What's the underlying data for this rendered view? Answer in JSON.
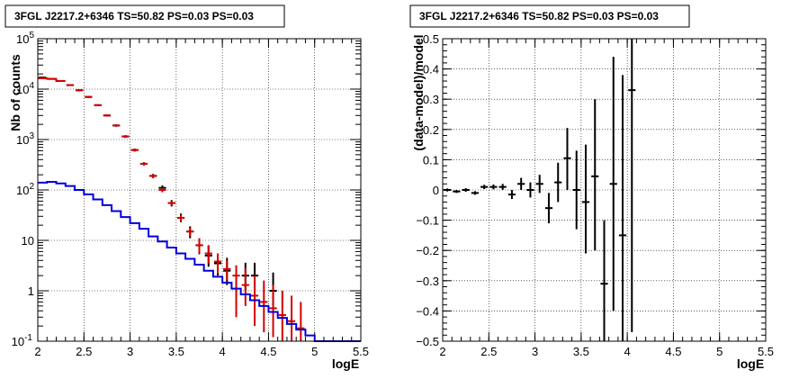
{
  "chart_data": [
    {
      "type": "scatter",
      "title": "3FGL J2217.2+6346 TS=50.82 PS=0.03 PS=0.03",
      "xlabel": "logE",
      "ylabel": "Nb of counts",
      "xlim": [
        2,
        5.5
      ],
      "ylim": [
        0.1,
        100000
      ],
      "yscale": "log",
      "grid": true,
      "x_ticks": [
        "2",
        "2.5",
        "3",
        "3.5",
        "4",
        "4.5",
        "5",
        "5.5"
      ],
      "y_ticks": [
        {
          "value": 0.1,
          "label": "10",
          "exp": "-1"
        },
        {
          "value": 1,
          "label": "1",
          "exp": ""
        },
        {
          "value": 10,
          "label": "10",
          "exp": ""
        },
        {
          "value": 100,
          "label": "10",
          "exp": "2"
        },
        {
          "value": 1000,
          "label": "10",
          "exp": "3"
        },
        {
          "value": 10000,
          "label": "10",
          "exp": "4"
        },
        {
          "value": 100000,
          "label": "10",
          "exp": "5"
        }
      ],
      "series": [
        {
          "kind": "points",
          "color": "#000000",
          "points": [
            {
              "x": 2.05,
              "y": 17000,
              "lo": 16500,
              "hi": 17500
            },
            {
              "x": 2.15,
              "y": 16000,
              "lo": 15500,
              "hi": 16500
            },
            {
              "x": 2.25,
              "y": 14500,
              "lo": 14000,
              "hi": 15000
            },
            {
              "x": 2.35,
              "y": 12000,
              "lo": 11600,
              "hi": 12400
            },
            {
              "x": 2.45,
              "y": 9500,
              "lo": 9100,
              "hi": 9900
            },
            {
              "x": 2.55,
              "y": 7000,
              "lo": 6700,
              "hi": 7300
            },
            {
              "x": 2.65,
              "y": 4800,
              "lo": 4600,
              "hi": 5000
            },
            {
              "x": 2.75,
              "y": 3000,
              "lo": 2850,
              "hi": 3150
            },
            {
              "x": 2.85,
              "y": 1900,
              "lo": 1800,
              "hi": 2000
            },
            {
              "x": 2.95,
              "y": 1150,
              "lo": 1080,
              "hi": 1220
            },
            {
              "x": 3.05,
              "y": 620,
              "lo": 580,
              "hi": 660
            },
            {
              "x": 3.15,
              "y": 330,
              "lo": 305,
              "hi": 355
            },
            {
              "x": 3.25,
              "y": 190,
              "lo": 172,
              "hi": 208
            },
            {
              "x": 3.35,
              "y": 110,
              "lo": 97,
              "hi": 123
            },
            {
              "x": 3.45,
              "y": 55,
              "lo": 47,
              "hi": 63
            },
            {
              "x": 3.55,
              "y": 28,
              "lo": 23,
              "hi": 34
            },
            {
              "x": 3.65,
              "y": 15,
              "lo": 11,
              "hi": 19
            },
            {
              "x": 3.75,
              "y": 8,
              "lo": 5.3,
              "hi": 11
            },
            {
              "x": 3.85,
              "y": 5,
              "lo": 3,
              "hi": 8
            },
            {
              "x": 3.95,
              "y": 3.5,
              "lo": 2,
              "hi": 5.5
            },
            {
              "x": 4.05,
              "y": 2.5,
              "lo": 1.3,
              "hi": 4.5
            },
            {
              "x": 4.25,
              "y": 2,
              "lo": 1,
              "hi": 3.6
            },
            {
              "x": 4.35,
              "y": 2,
              "lo": 1,
              "hi": 3.6
            },
            {
              "x": 4.55,
              "y": 1,
              "lo": 0.5,
              "hi": 2.3
            }
          ]
        },
        {
          "kind": "points",
          "color": "#d40000",
          "points": [
            {
              "x": 2.05,
              "y": 16500,
              "lo": 16000,
              "hi": 17000
            },
            {
              "x": 2.15,
              "y": 16000,
              "lo": 15500,
              "hi": 16500
            },
            {
              "x": 2.25,
              "y": 14500,
              "lo": 14000,
              "hi": 15000
            },
            {
              "x": 2.35,
              "y": 12000,
              "lo": 11600,
              "hi": 12400
            },
            {
              "x": 2.45,
              "y": 9500,
              "lo": 9100,
              "hi": 9900
            },
            {
              "x": 2.55,
              "y": 7000,
              "lo": 6700,
              "hi": 7300
            },
            {
              "x": 2.65,
              "y": 4800,
              "lo": 4600,
              "hi": 5000
            },
            {
              "x": 2.75,
              "y": 3000,
              "lo": 2850,
              "hi": 3150
            },
            {
              "x": 2.85,
              "y": 1900,
              "lo": 1800,
              "hi": 2000
            },
            {
              "x": 2.95,
              "y": 1150,
              "lo": 1080,
              "hi": 1220
            },
            {
              "x": 3.05,
              "y": 620,
              "lo": 580,
              "hi": 660
            },
            {
              "x": 3.15,
              "y": 330,
              "lo": 305,
              "hi": 355
            },
            {
              "x": 3.25,
              "y": 190,
              "lo": 172,
              "hi": 208
            },
            {
              "x": 3.35,
              "y": 100,
              "lo": 90,
              "hi": 110
            },
            {
              "x": 3.45,
              "y": 55,
              "lo": 49,
              "hi": 61
            },
            {
              "x": 3.55,
              "y": 28,
              "lo": 24,
              "hi": 32
            },
            {
              "x": 3.65,
              "y": 15,
              "lo": 12,
              "hi": 18
            },
            {
              "x": 3.75,
              "y": 8,
              "lo": 5.5,
              "hi": 11
            },
            {
              "x": 3.85,
              "y": 5.5,
              "lo": 3.5,
              "hi": 8
            },
            {
              "x": 3.95,
              "y": 3.8,
              "lo": 2.2,
              "hi": 5.5
            },
            {
              "x": 4.05,
              "y": 2.7,
              "lo": 1.6,
              "hi": 4
            },
            {
              "x": 4.15,
              "y": 2.0,
              "lo": 0.3,
              "hi": 3.2
            },
            {
              "x": 4.25,
              "y": 1.3,
              "lo": 0.5,
              "hi": 2.8
            },
            {
              "x": 4.35,
              "y": 0.8,
              "lo": 0.2,
              "hi": 2.0
            },
            {
              "x": 4.45,
              "y": 0.6,
              "lo": 0.15,
              "hi": 1.6
            },
            {
              "x": 4.55,
              "y": 0.45,
              "lo": 0.12,
              "hi": 1.3
            },
            {
              "x": 4.65,
              "y": 0.33,
              "lo": 0.1,
              "hi": 1.0
            },
            {
              "x": 4.75,
              "y": 0.25,
              "lo": 0.1,
              "hi": 0.8
            },
            {
              "x": 4.85,
              "y": 0.18,
              "lo": 0.1,
              "hi": 0.6
            }
          ]
        },
        {
          "kind": "step",
          "color": "#0000dd",
          "bins": [
            {
              "x0": 2.0,
              "x1": 2.1,
              "y": 140
            },
            {
              "x0": 2.1,
              "x1": 2.2,
              "y": 145
            },
            {
              "x0": 2.2,
              "x1": 2.3,
              "y": 135
            },
            {
              "x0": 2.3,
              "x1": 2.4,
              "y": 120
            },
            {
              "x0": 2.4,
              "x1": 2.5,
              "y": 100
            },
            {
              "x0": 2.5,
              "x1": 2.6,
              "y": 82
            },
            {
              "x0": 2.6,
              "x1": 2.7,
              "y": 65
            },
            {
              "x0": 2.7,
              "x1": 2.8,
              "y": 50
            },
            {
              "x0": 2.8,
              "x1": 2.9,
              "y": 38
            },
            {
              "x0": 2.9,
              "x1": 3.0,
              "y": 29
            },
            {
              "x0": 3.0,
              "x1": 3.1,
              "y": 22
            },
            {
              "x0": 3.1,
              "x1": 3.2,
              "y": 17
            },
            {
              "x0": 3.2,
              "x1": 3.3,
              "y": 12
            },
            {
              "x0": 3.3,
              "x1": 3.4,
              "y": 9.5
            },
            {
              "x0": 3.4,
              "x1": 3.5,
              "y": 7.2
            },
            {
              "x0": 3.5,
              "x1": 3.6,
              "y": 5.5
            },
            {
              "x0": 3.6,
              "x1": 3.7,
              "y": 4.3
            },
            {
              "x0": 3.7,
              "x1": 3.8,
              "y": 3.3
            },
            {
              "x0": 3.8,
              "x1": 3.9,
              "y": 2.5
            },
            {
              "x0": 3.9,
              "x1": 4.0,
              "y": 1.9
            },
            {
              "x0": 4.0,
              "x1": 4.1,
              "y": 1.45
            },
            {
              "x0": 4.1,
              "x1": 4.2,
              "y": 1.1
            },
            {
              "x0": 4.2,
              "x1": 4.3,
              "y": 0.85
            },
            {
              "x0": 4.3,
              "x1": 4.4,
              "y": 0.65
            },
            {
              "x0": 4.4,
              "x1": 4.5,
              "y": 0.5
            },
            {
              "x0": 4.5,
              "x1": 4.6,
              "y": 0.38
            },
            {
              "x0": 4.6,
              "x1": 4.7,
              "y": 0.29
            },
            {
              "x0": 4.7,
              "x1": 4.8,
              "y": 0.22
            },
            {
              "x0": 4.8,
              "x1": 4.9,
              "y": 0.17
            },
            {
              "x0": 4.9,
              "x1": 5.0,
              "y": 0.13
            },
            {
              "x0": 5.0,
              "x1": 5.5,
              "y": 0.1
            }
          ]
        },
        {
          "kind": "step",
          "color": "#d40000",
          "bins": [
            {
              "x0": 2.0,
              "x1": 2.1,
              "y": 16500
            },
            {
              "x0": 2.1,
              "x1": 2.2,
              "y": 16000
            },
            {
              "x0": 2.2,
              "x1": 2.3,
              "y": 14500
            }
          ]
        }
      ]
    },
    {
      "type": "scatter",
      "title": "3FGL J2217.2+6346 TS=50.82 PS=0.03 PS=0.03",
      "xlabel": "logE",
      "ylabel": "(data-model)/model",
      "xlim": [
        2,
        5.5
      ],
      "ylim": [
        -0.5,
        0.5
      ],
      "grid": true,
      "x_ticks": [
        "2",
        "2.5",
        "3",
        "3.5",
        "4",
        "4.5",
        "5",
        "5.5"
      ],
      "y_ticks": [
        "0.5",
        "0.4",
        "0.3",
        "0.2",
        "0.1",
        "0",
        "−0.1",
        "−0.2",
        "−0.3",
        "−0.4",
        "−0.5"
      ],
      "series": [
        {
          "kind": "points",
          "color": "#000000",
          "points": [
            {
              "x": 2.05,
              "y": 0.0,
              "lo": -0.005,
              "hi": 0.005
            },
            {
              "x": 2.15,
              "y": -0.005,
              "lo": -0.01,
              "hi": 0.0
            },
            {
              "x": 2.25,
              "y": 0.0,
              "lo": -0.006,
              "hi": 0.006
            },
            {
              "x": 2.35,
              "y": -0.01,
              "lo": -0.016,
              "hi": -0.004
            },
            {
              "x": 2.45,
              "y": 0.01,
              "lo": 0.003,
              "hi": 0.017
            },
            {
              "x": 2.55,
              "y": 0.01,
              "lo": 0.002,
              "hi": 0.018
            },
            {
              "x": 2.65,
              "y": 0.01,
              "lo": 0.0,
              "hi": 0.02
            },
            {
              "x": 2.75,
              "y": -0.015,
              "lo": -0.03,
              "hi": 0.0
            },
            {
              "x": 2.85,
              "y": 0.02,
              "lo": 0.0,
              "hi": 0.04
            },
            {
              "x": 2.95,
              "y": 0.0,
              "lo": -0.025,
              "hi": 0.025
            },
            {
              "x": 3.05,
              "y": 0.02,
              "lo": -0.01,
              "hi": 0.05
            },
            {
              "x": 3.15,
              "y": -0.06,
              "lo": -0.11,
              "hi": -0.01
            },
            {
              "x": 3.25,
              "y": 0.025,
              "lo": -0.04,
              "hi": 0.09
            },
            {
              "x": 3.35,
              "y": 0.105,
              "lo": 0.0,
              "hi": 0.205
            },
            {
              "x": 3.45,
              "y": 0.0,
              "lo": -0.13,
              "hi": 0.13
            },
            {
              "x": 3.55,
              "y": -0.04,
              "lo": -0.21,
              "hi": 0.15
            },
            {
              "x": 3.65,
              "y": 0.045,
              "lo": -0.2,
              "hi": 0.3
            },
            {
              "x": 3.75,
              "y": -0.31,
              "lo": -0.5,
              "hi": -0.1
            },
            {
              "x": 3.85,
              "y": 0.02,
              "lo": -0.4,
              "hi": 0.44
            },
            {
              "x": 3.95,
              "y": -0.15,
              "lo": -0.5,
              "hi": 0.38
            },
            {
              "x": 4.05,
              "y": 0.33,
              "lo": -0.47,
              "hi": 0.5
            }
          ]
        }
      ]
    }
  ]
}
